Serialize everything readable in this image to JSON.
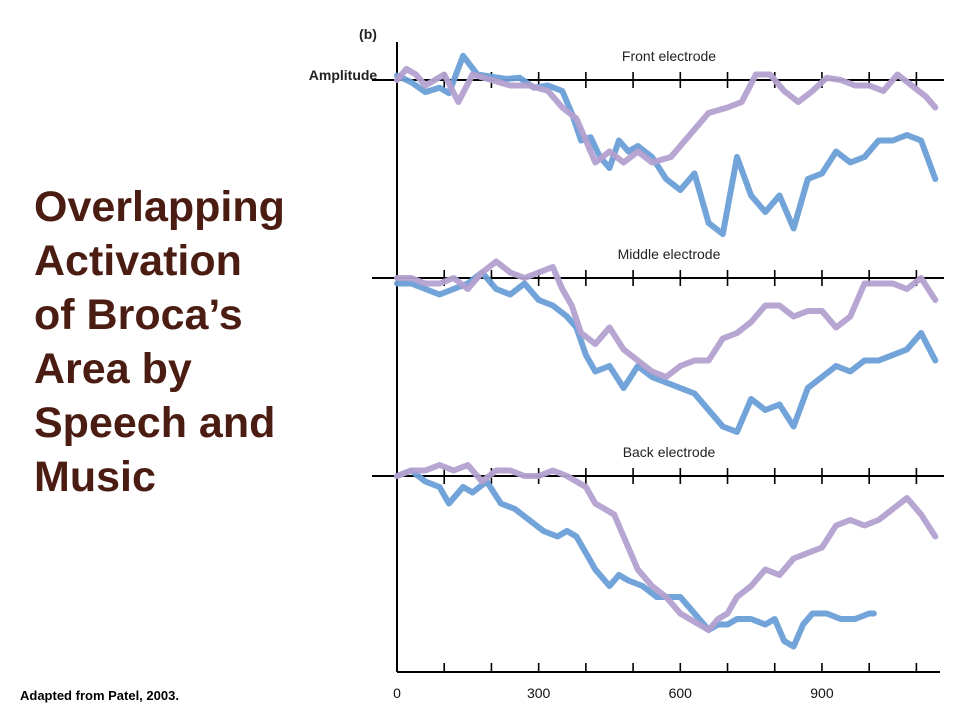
{
  "slide": {
    "title_lines": [
      "Overlapping",
      "Activation",
      "of Broca’s",
      "Area by",
      "Speech and",
      "Music"
    ],
    "credit": "Adapted from Patel, 2003."
  },
  "colors": {
    "speech": "#6a9fd8",
    "music": "#b3a0d0",
    "title": "#4a1c12",
    "axis": "#000000"
  },
  "chart_data": {
    "type": "line",
    "panel_label": "(b)",
    "ylabel": "Amplitude",
    "xlabel": "",
    "xlim": [
      0,
      1150
    ],
    "xticks": [
      0,
      300,
      600,
      900
    ],
    "ylim": [
      -1.5,
      0.3
    ],
    "grid": false,
    "legend": "none",
    "panels": [
      {
        "title": "Front electrode",
        "series": [
          {
            "color": "#6a9fd8",
            "x": [
              0,
              30,
              60,
              90,
              110,
              140,
              170,
              200,
              230,
              260,
              290,
              320,
              350,
              370,
              390,
              410,
              430,
              450,
              470,
              490,
              510,
              540,
              570,
              600,
              630,
              660,
              690,
              720,
              750,
              780,
              810,
              840,
              870,
              900,
              930,
              960,
              990,
              1020,
              1050,
              1080,
              1110,
              1140
            ],
            "y": [
              0.04,
              -0.02,
              -0.11,
              -0.07,
              -0.12,
              0.22,
              0.05,
              0.03,
              0.01,
              0.02,
              -0.07,
              -0.05,
              -0.1,
              -0.3,
              -0.55,
              -0.52,
              -0.7,
              -0.8,
              -0.55,
              -0.65,
              -0.6,
              -0.7,
              -0.9,
              -1.0,
              -0.85,
              -1.3,
              -1.4,
              -0.7,
              -1.05,
              -1.2,
              -1.05,
              -1.35,
              -0.9,
              -0.85,
              -0.65,
              -0.75,
              -0.7,
              -0.55,
              -0.55,
              -0.5,
              -0.55,
              -0.9
            ]
          },
          {
            "color": "#b3a0d0",
            "x": [
              0,
              20,
              40,
              60,
              80,
              100,
              130,
              160,
              200,
              240,
              280,
              320,
              350,
              380,
              400,
              420,
              450,
              480,
              510,
              540,
              580,
              620,
              660,
              700,
              730,
              760,
              790,
              820,
              850,
              880,
              910,
              940,
              970,
              1000,
              1030,
              1060,
              1090,
              1120,
              1140
            ],
            "y": [
              0,
              0.1,
              0.05,
              -0.05,
              0,
              0.05,
              -0.2,
              0.05,
              0,
              -0.05,
              -0.05,
              -0.1,
              -0.25,
              -0.35,
              -0.55,
              -0.75,
              -0.65,
              -0.75,
              -0.65,
              -0.75,
              -0.7,
              -0.5,
              -0.3,
              -0.25,
              -0.2,
              0.05,
              0.05,
              -0.1,
              -0.2,
              -0.1,
              0.02,
              0,
              -0.05,
              -0.05,
              -0.1,
              0.05,
              -0.05,
              -0.15,
              -0.25
            ]
          }
        ]
      },
      {
        "title": "Middle electrode",
        "series": [
          {
            "color": "#6a9fd8",
            "x": [
              0,
              30,
              60,
              90,
              120,
              150,
              180,
              210,
              240,
              270,
              300,
              330,
              360,
              380,
              400,
              420,
              450,
              480,
              510,
              540,
              570,
              600,
              630,
              660,
              690,
              720,
              750,
              780,
              810,
              840,
              870,
              900,
              930,
              960,
              990,
              1020,
              1050,
              1080,
              1110,
              1140
            ],
            "y": [
              -0.05,
              -0.05,
              -0.1,
              -0.15,
              -0.1,
              -0.05,
              0.05,
              -0.1,
              -0.15,
              -0.05,
              -0.2,
              -0.25,
              -0.35,
              -0.45,
              -0.7,
              -0.85,
              -0.8,
              -1.0,
              -0.8,
              -0.9,
              -0.95,
              -1.0,
              -1.05,
              -1.2,
              -1.35,
              -1.4,
              -1.1,
              -1.2,
              -1.15,
              -1.35,
              -1.0,
              -0.9,
              -0.8,
              -0.85,
              -0.75,
              -0.75,
              -0.7,
              -0.65,
              -0.5,
              -0.75
            ]
          },
          {
            "color": "#b3a0d0",
            "x": [
              0,
              30,
              60,
              90,
              120,
              150,
              180,
              210,
              240,
              270,
              300,
              330,
              350,
              370,
              390,
              420,
              450,
              480,
              510,
              540,
              570,
              600,
              630,
              660,
              690,
              720,
              750,
              780,
              810,
              840,
              870,
              900,
              930,
              960,
              990,
              1020,
              1050,
              1080,
              1110,
              1140
            ],
            "y": [
              0,
              0,
              -0.05,
              -0.05,
              0,
              -0.1,
              0.05,
              0.15,
              0.05,
              0,
              0.05,
              0.1,
              -0.1,
              -0.25,
              -0.5,
              -0.6,
              -0.45,
              -0.65,
              -0.75,
              -0.85,
              -0.9,
              -0.8,
              -0.75,
              -0.75,
              -0.55,
              -0.5,
              -0.4,
              -0.25,
              -0.25,
              -0.35,
              -0.3,
              -0.3,
              -0.45,
              -0.35,
              -0.05,
              -0.05,
              -0.05,
              -0.1,
              0,
              -0.2
            ]
          }
        ]
      },
      {
        "title": "Back electrode",
        "series": [
          {
            "color": "#6a9fd8",
            "x": [
              0,
              30,
              60,
              90,
              110,
              140,
              160,
              190,
              220,
              250,
              280,
              310,
              340,
              360,
              380,
              400,
              420,
              450,
              470,
              490,
              520,
              550,
              580,
              600,
              630,
              660,
              680,
              700,
              720,
              750,
              780,
              800,
              820,
              840,
              860,
              880,
              910,
              940,
              970,
              1000,
              1010
            ],
            "y": [
              0,
              0.05,
              -0.05,
              -0.1,
              -0.25,
              -0.1,
              -0.15,
              -0.05,
              -0.25,
              -0.3,
              -0.4,
              -0.5,
              -0.55,
              -0.5,
              -0.55,
              -0.7,
              -0.85,
              -1.0,
              -0.9,
              -0.95,
              -1.0,
              -1.1,
              -1.1,
              -1.1,
              -1.25,
              -1.4,
              -1.35,
              -1.35,
              -1.3,
              -1.3,
              -1.35,
              -1.3,
              -1.5,
              -1.55,
              -1.35,
              -1.25,
              -1.25,
              -1.3,
              -1.3,
              -1.25,
              -1.25
            ]
          },
          {
            "color": "#b3a0d0",
            "x": [
              0,
              30,
              60,
              90,
              120,
              150,
              180,
              210,
              240,
              270,
              300,
              330,
              360,
              380,
              400,
              420,
              440,
              460,
              480,
              510,
              540,
              570,
              600,
              620,
              640,
              660,
              680,
              700,
              720,
              750,
              780,
              810,
              840,
              870,
              900,
              930,
              960,
              990,
              1020,
              1050,
              1080,
              1110,
              1140
            ],
            "y": [
              0,
              0.05,
              0.05,
              0.1,
              0.05,
              0.1,
              -0.05,
              0.05,
              0.05,
              0,
              0,
              0.05,
              0,
              -0.05,
              -0.1,
              -0.25,
              -0.3,
              -0.35,
              -0.55,
              -0.85,
              -1.0,
              -1.1,
              -1.25,
              -1.3,
              -1.35,
              -1.4,
              -1.3,
              -1.25,
              -1.1,
              -1.0,
              -0.85,
              -0.9,
              -0.75,
              -0.7,
              -0.65,
              -0.45,
              -0.4,
              -0.45,
              -0.4,
              -0.3,
              -0.2,
              -0.35,
              -0.55
            ]
          }
        ]
      }
    ]
  }
}
